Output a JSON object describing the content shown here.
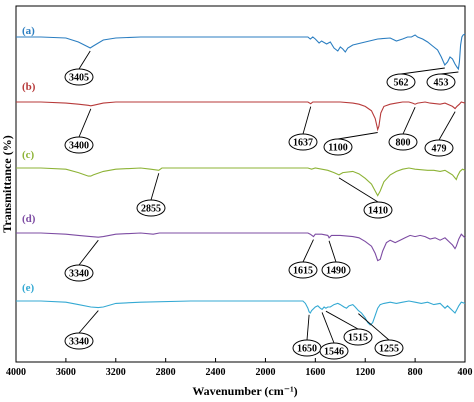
{
  "chart_data": {
    "type": "line",
    "xlabel": "Wavenumber (cm⁻¹)",
    "ylabel": "Transmittance (%)",
    "xlim": [
      4000,
      400
    ],
    "x_reversed": true,
    "xticks": [
      4000,
      3600,
      3200,
      2800,
      2400,
      2000,
      1600,
      1200,
      800,
      400
    ],
    "grid": false,
    "legend": "none",
    "series": [
      {
        "name": "(a)",
        "color": "#2b7ec1",
        "points": [
          [
            4000,
            0
          ],
          [
            3800,
            0
          ],
          [
            3600,
            -1
          ],
          [
            3500,
            -5
          ],
          [
            3420,
            -10
          ],
          [
            3405,
            -11
          ],
          [
            3380,
            -9
          ],
          [
            3300,
            -3
          ],
          [
            3200,
            -1
          ],
          [
            3000,
            0
          ],
          [
            2600,
            0
          ],
          [
            2200,
            0
          ],
          [
            2000,
            0
          ],
          [
            1800,
            0
          ],
          [
            1660,
            0
          ],
          [
            1640,
            -2
          ],
          [
            1620,
            0
          ],
          [
            1600,
            -2
          ],
          [
            1570,
            -6
          ],
          [
            1550,
            -4
          ],
          [
            1510,
            -7
          ],
          [
            1480,
            -5
          ],
          [
            1450,
            -11
          ],
          [
            1420,
            -14
          ],
          [
            1400,
            -10
          ],
          [
            1380,
            -12
          ],
          [
            1360,
            -15
          ],
          [
            1340,
            -11
          ],
          [
            1300,
            -8
          ],
          [
            1200,
            -5
          ],
          [
            1100,
            -2
          ],
          [
            1000,
            -1
          ],
          [
            950,
            -4
          ],
          [
            900,
            -2
          ],
          [
            860,
            0
          ],
          [
            830,
            0
          ],
          [
            800,
            2
          ],
          [
            780,
            0
          ],
          [
            740,
            -2
          ],
          [
            700,
            -5
          ],
          [
            660,
            -9
          ],
          [
            620,
            -13
          ],
          [
            590,
            -20
          ],
          [
            562,
            -28
          ],
          [
            540,
            -25
          ],
          [
            520,
            -20
          ],
          [
            500,
            -22
          ],
          [
            480,
            -27
          ],
          [
            465,
            -30
          ],
          [
            453,
            -32
          ],
          [
            445,
            -25
          ],
          [
            435,
            -8
          ],
          [
            425,
            0
          ],
          [
            415,
            2
          ],
          [
            400,
            3
          ]
        ],
        "labels": [
          3405,
          562,
          453
        ]
      },
      {
        "name": "(b)",
        "color": "#b73a3a",
        "points": [
          [
            4000,
            0
          ],
          [
            3800,
            0
          ],
          [
            3600,
            -1
          ],
          [
            3500,
            -2
          ],
          [
            3420,
            -3
          ],
          [
            3400,
            -3.5
          ],
          [
            3380,
            -3
          ],
          [
            3300,
            -1
          ],
          [
            3200,
            0
          ],
          [
            2400,
            0
          ],
          [
            1800,
            0
          ],
          [
            1660,
            0
          ],
          [
            1637,
            -1.5
          ],
          [
            1620,
            0
          ],
          [
            1400,
            0
          ],
          [
            1300,
            -1
          ],
          [
            1250,
            -2
          ],
          [
            1200,
            -4
          ],
          [
            1150,
            -8
          ],
          [
            1120,
            -15
          ],
          [
            1100,
            -25
          ],
          [
            1090,
            -22
          ],
          [
            1075,
            -10
          ],
          [
            1050,
            -4
          ],
          [
            1000,
            -2
          ],
          [
            950,
            -1
          ],
          [
            900,
            0
          ],
          [
            850,
            0
          ],
          [
            820,
            -1
          ],
          [
            800,
            -2
          ],
          [
            780,
            -1
          ],
          [
            720,
            0
          ],
          [
            680,
            -1
          ],
          [
            600,
            -2
          ],
          [
            560,
            -1
          ],
          [
            520,
            -3
          ],
          [
            500,
            -4
          ],
          [
            479,
            -6
          ],
          [
            465,
            -4
          ],
          [
            445,
            -2
          ],
          [
            430,
            0
          ],
          [
            400,
            -1
          ]
        ],
        "labels": [
          3400,
          1637,
          1100,
          800,
          479
        ]
      },
      {
        "name": "(c)",
        "color": "#8db336",
        "points": [
          [
            4000,
            0
          ],
          [
            3800,
            0
          ],
          [
            3600,
            -1
          ],
          [
            3500,
            -4
          ],
          [
            3420,
            -7
          ],
          [
            3400,
            -7
          ],
          [
            3380,
            -6
          ],
          [
            3300,
            -3
          ],
          [
            3200,
            -1
          ],
          [
            3000,
            0
          ],
          [
            2920,
            -1
          ],
          [
            2855,
            -2
          ],
          [
            2830,
            0
          ],
          [
            2600,
            0
          ],
          [
            2200,
            0
          ],
          [
            1800,
            0
          ],
          [
            1660,
            0
          ],
          [
            1630,
            -1
          ],
          [
            1600,
            0
          ],
          [
            1500,
            -2
          ],
          [
            1450,
            -4
          ],
          [
            1410,
            -6
          ],
          [
            1380,
            -4
          ],
          [
            1300,
            -3
          ],
          [
            1250,
            -5
          ],
          [
            1200,
            -9
          ],
          [
            1150,
            -14
          ],
          [
            1120,
            -20
          ],
          [
            1100,
            -24
          ],
          [
            1080,
            -20
          ],
          [
            1050,
            -12
          ],
          [
            1000,
            -6
          ],
          [
            950,
            -3
          ],
          [
            900,
            -1
          ],
          [
            850,
            0
          ],
          [
            800,
            -1
          ],
          [
            700,
            -2
          ],
          [
            650,
            -2
          ],
          [
            600,
            -3
          ],
          [
            560,
            -2
          ],
          [
            530,
            -4
          ],
          [
            500,
            -6
          ],
          [
            470,
            -10
          ],
          [
            460,
            -7
          ],
          [
            440,
            -3
          ],
          [
            420,
            -1
          ],
          [
            400,
            -2
          ]
        ],
        "labels": [
          2855,
          1410
        ]
      },
      {
        "name": "(d)",
        "color": "#7d4ca3",
        "points": [
          [
            4000,
            0
          ],
          [
            3800,
            0
          ],
          [
            3600,
            -1
          ],
          [
            3500,
            -2
          ],
          [
            3400,
            -3
          ],
          [
            3340,
            -3.5
          ],
          [
            3300,
            -3
          ],
          [
            3200,
            -1
          ],
          [
            3000,
            0
          ],
          [
            2900,
            -1
          ],
          [
            2850,
            0
          ],
          [
            2600,
            0
          ],
          [
            2200,
            0
          ],
          [
            1800,
            0
          ],
          [
            1660,
            0
          ],
          [
            1640,
            -1
          ],
          [
            1615,
            -3
          ],
          [
            1600,
            -1
          ],
          [
            1550,
            -1
          ],
          [
            1500,
            -2
          ],
          [
            1490,
            -4
          ],
          [
            1470,
            -2
          ],
          [
            1400,
            -2
          ],
          [
            1300,
            -3
          ],
          [
            1250,
            -4
          ],
          [
            1200,
            -7
          ],
          [
            1150,
            -11
          ],
          [
            1120,
            -17
          ],
          [
            1100,
            -23
          ],
          [
            1080,
            -22
          ],
          [
            1060,
            -15
          ],
          [
            1030,
            -8
          ],
          [
            1000,
            -6
          ],
          [
            960,
            -8
          ],
          [
            920,
            -6
          ],
          [
            880,
            -4
          ],
          [
            840,
            -2
          ],
          [
            800,
            -3
          ],
          [
            760,
            -2
          ],
          [
            720,
            -3
          ],
          [
            680,
            -5
          ],
          [
            640,
            -4
          ],
          [
            600,
            -6
          ],
          [
            560,
            -4
          ],
          [
            520,
            -8
          ],
          [
            500,
            -10
          ],
          [
            480,
            -13
          ],
          [
            470,
            -11
          ],
          [
            450,
            -5
          ],
          [
            430,
            -1
          ],
          [
            400,
            -4
          ]
        ],
        "labels": [
          3340,
          1615,
          1490
        ]
      },
      {
        "name": "(e)",
        "color": "#34a9d3",
        "points": [
          [
            4000,
            0
          ],
          [
            3800,
            0
          ],
          [
            3600,
            -1
          ],
          [
            3500,
            -3
          ],
          [
            3400,
            -5
          ],
          [
            3340,
            -5.5
          ],
          [
            3300,
            -5
          ],
          [
            3200,
            -2
          ],
          [
            3000,
            -1
          ],
          [
            2600,
            0
          ],
          [
            2200,
            0
          ],
          [
            1800,
            0
          ],
          [
            1700,
            0
          ],
          [
            1680,
            -2
          ],
          [
            1660,
            -6
          ],
          [
            1650,
            -9
          ],
          [
            1640,
            -10
          ],
          [
            1630,
            -8
          ],
          [
            1600,
            -5
          ],
          [
            1580,
            -4
          ],
          [
            1560,
            -6
          ],
          [
            1546,
            -7
          ],
          [
            1530,
            -5
          ],
          [
            1515,
            -6
          ],
          [
            1500,
            -5
          ],
          [
            1480,
            -5
          ],
          [
            1450,
            -3
          ],
          [
            1420,
            -2
          ],
          [
            1400,
            -3
          ],
          [
            1370,
            -5
          ],
          [
            1350,
            -6
          ],
          [
            1330,
            -4
          ],
          [
            1300,
            -3
          ],
          [
            1280,
            -5
          ],
          [
            1255,
            -8
          ],
          [
            1230,
            -10
          ],
          [
            1200,
            -14
          ],
          [
            1180,
            -18
          ],
          [
            1160,
            -20
          ],
          [
            1140,
            -18
          ],
          [
            1120,
            -12
          ],
          [
            1100,
            -6
          ],
          [
            1080,
            -3
          ],
          [
            1050,
            -2
          ],
          [
            1000,
            -1
          ],
          [
            950,
            -2
          ],
          [
            900,
            -1
          ],
          [
            850,
            0
          ],
          [
            800,
            -1
          ],
          [
            750,
            -2
          ],
          [
            700,
            -1
          ],
          [
            650,
            -3
          ],
          [
            600,
            -2
          ],
          [
            560,
            -6
          ],
          [
            540,
            -4
          ],
          [
            500,
            -8
          ],
          [
            480,
            -10
          ],
          [
            470,
            -8
          ],
          [
            450,
            -4
          ],
          [
            430,
            -1
          ],
          [
            400,
            -2
          ]
        ],
        "labels": [
          3340,
          1650,
          1546,
          1515,
          1255
        ]
      }
    ]
  }
}
